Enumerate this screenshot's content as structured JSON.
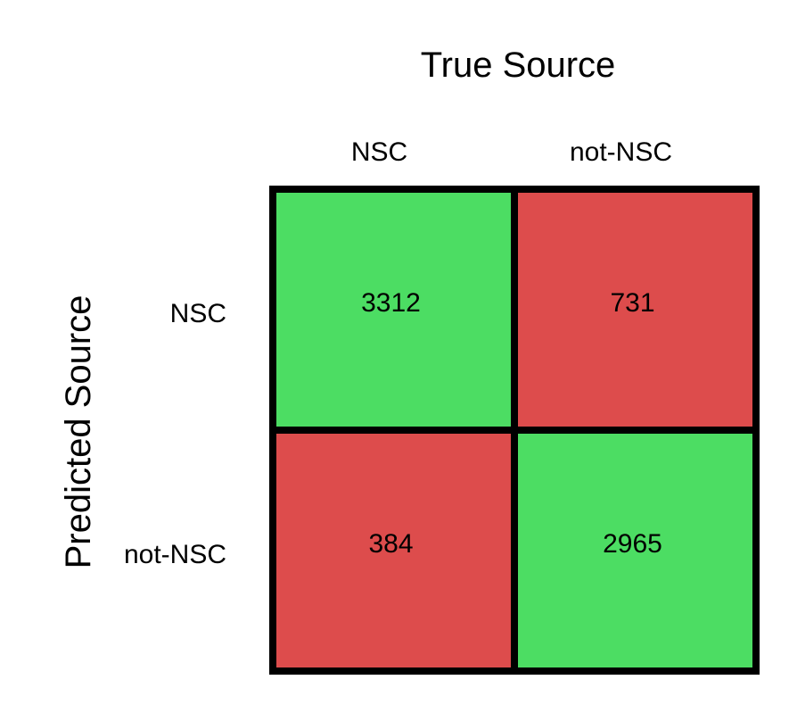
{
  "chart_data": {
    "type": "heatmap",
    "title": "True Source",
    "xlabel": "True Source",
    "ylabel": "Predicted Source",
    "x_categories": [
      "NSC",
      "not-NSC"
    ],
    "y_categories": [
      "NSC",
      "not-NSC"
    ],
    "values": [
      [
        3312,
        731
      ],
      [
        384,
        2965
      ]
    ],
    "cell_status": [
      [
        "correct",
        "incorrect"
      ],
      [
        "incorrect",
        "correct"
      ]
    ],
    "colors": {
      "correct": "#4cdd63",
      "incorrect": "#dd4c4c",
      "border": "#000000",
      "text": "#000000"
    },
    "grid": true,
    "legend": "none"
  }
}
